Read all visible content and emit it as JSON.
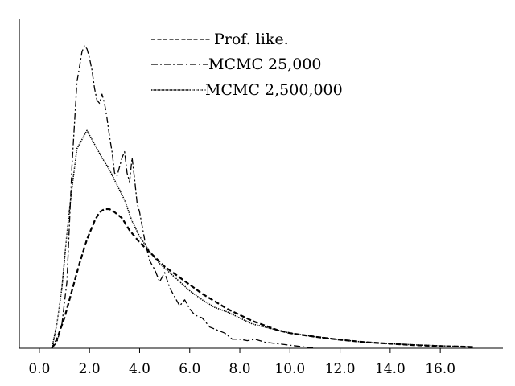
{
  "chart_data": {
    "type": "line",
    "title": "",
    "xlabel": "",
    "ylabel": "",
    "xlim": [
      -0.8,
      18.5
    ],
    "ylim": [
      0,
      1.0
    ],
    "x_ticks": [
      0.0,
      2.0,
      4.0,
      6.0,
      8.0,
      10.0,
      12.0,
      14.0,
      16.0
    ],
    "x_tick_labels": [
      "0.0",
      "2.0",
      "4.0",
      "6.0",
      "8.0",
      "10.0",
      "12.0",
      "14.0",
      "16.0"
    ],
    "y_ticks_shown": false,
    "grid": false,
    "legend_position": "top-center",
    "series": [
      {
        "name": "Prof. like.",
        "style": "dashed",
        "x": [
          0.5,
          0.7,
          1.0,
          1.3,
          1.6,
          1.9,
          2.2,
          2.4,
          2.6,
          2.8,
          3.0,
          3.3,
          3.6,
          4.0,
          4.5,
          5.0,
          5.5,
          6.0,
          6.5,
          7.0,
          7.5,
          8.0,
          8.5,
          9.0,
          9.5,
          10.0,
          11.0,
          12.0,
          13.0,
          14.0,
          15.0,
          16.0,
          17.0,
          17.3
        ],
        "y": [
          0.0,
          0.03,
          0.1,
          0.19,
          0.28,
          0.36,
          0.42,
          0.45,
          0.46,
          0.46,
          0.45,
          0.43,
          0.39,
          0.35,
          0.31,
          0.27,
          0.24,
          0.21,
          0.18,
          0.155,
          0.13,
          0.11,
          0.09,
          0.075,
          0.06,
          0.05,
          0.038,
          0.028,
          0.02,
          0.015,
          0.01,
          0.007,
          0.005,
          0.004
        ]
      },
      {
        "name": "MCMC 25,000",
        "style": "dashdot",
        "x": [
          0.5,
          0.7,
          0.9,
          1.1,
          1.3,
          1.5,
          1.7,
          1.8,
          1.9,
          2.0,
          2.1,
          2.2,
          2.3,
          2.4,
          2.5,
          2.6,
          2.7,
          2.8,
          2.9,
          3.0,
          3.1,
          3.2,
          3.3,
          3.4,
          3.5,
          3.6,
          3.7,
          3.8,
          3.9,
          4.0,
          4.2,
          4.4,
          4.6,
          4.8,
          5.0,
          5.2,
          5.4,
          5.6,
          5.8,
          6.0,
          6.2,
          6.5,
          6.8,
          7.1,
          7.4,
          7.7,
          8.0,
          8.3,
          8.6,
          9.0,
          9.5,
          10.0,
          10.5,
          11.0
        ],
        "y": [
          0.0,
          0.02,
          0.08,
          0.22,
          0.6,
          0.88,
          0.98,
          1.0,
          0.99,
          0.96,
          0.92,
          0.86,
          0.82,
          0.81,
          0.84,
          0.81,
          0.76,
          0.7,
          0.65,
          0.58,
          0.57,
          0.6,
          0.63,
          0.65,
          0.58,
          0.55,
          0.63,
          0.56,
          0.48,
          0.45,
          0.36,
          0.29,
          0.26,
          0.22,
          0.25,
          0.2,
          0.17,
          0.14,
          0.16,
          0.13,
          0.11,
          0.1,
          0.07,
          0.06,
          0.05,
          0.03,
          0.03,
          0.025,
          0.03,
          0.02,
          0.015,
          0.01,
          0.005,
          0.0
        ]
      },
      {
        "name": "MCMC 2,500,000",
        "style": "dotted",
        "x": [
          0.5,
          0.7,
          0.9,
          1.1,
          1.3,
          1.5,
          1.7,
          1.9,
          2.1,
          2.3,
          2.5,
          2.8,
          3.1,
          3.4,
          3.7,
          4.0,
          4.4,
          4.8,
          5.2,
          5.6,
          6.0,
          6.5,
          7.0,
          7.5,
          8.0,
          8.5,
          9.0,
          9.5,
          10.0,
          11.0,
          12.0,
          13.0,
          14.0,
          15.0,
          16.0,
          17.0,
          17.3
        ],
        "y": [
          0.0,
          0.08,
          0.2,
          0.38,
          0.53,
          0.66,
          0.69,
          0.72,
          0.69,
          0.66,
          0.63,
          0.59,
          0.54,
          0.49,
          0.42,
          0.37,
          0.32,
          0.28,
          0.25,
          0.22,
          0.19,
          0.16,
          0.135,
          0.12,
          0.1,
          0.08,
          0.07,
          0.06,
          0.05,
          0.038,
          0.028,
          0.02,
          0.015,
          0.011,
          0.008,
          0.005,
          0.004
        ]
      }
    ]
  }
}
